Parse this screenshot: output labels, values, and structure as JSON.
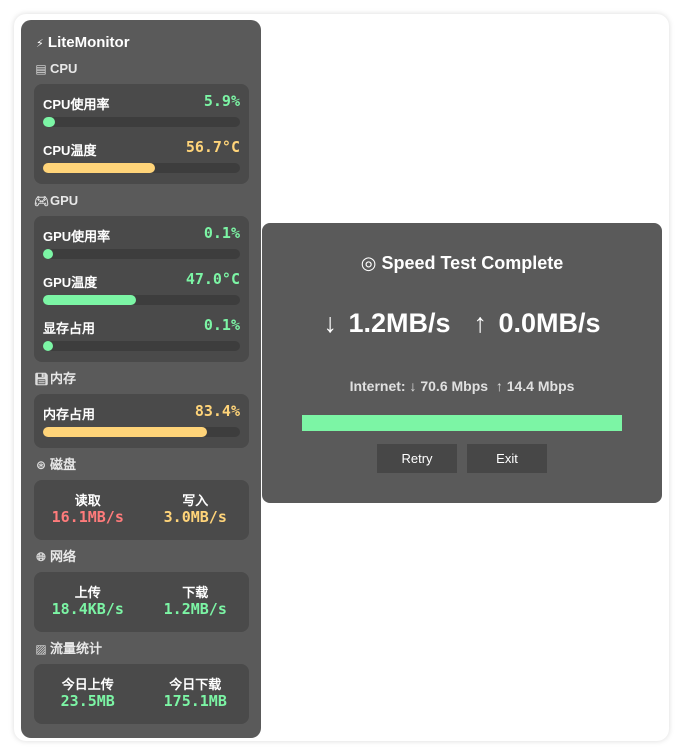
{
  "colors": {
    "green": "#7cf5a5",
    "yellow": "#ffd479",
    "red": "#ff7b7b"
  },
  "app": {
    "title": "LiteMonitor",
    "icon": "lightning-icon"
  },
  "cpu": {
    "header": "CPU",
    "icon": "computer-icon",
    "usage_label": "CPU使用率",
    "usage_value": "5.9%",
    "usage_percent": 5.9,
    "temp_label": "CPU温度",
    "temp_value": "56.7°C",
    "temp_percent": 56.7
  },
  "gpu": {
    "header": "GPU",
    "icon": "gamepad-icon",
    "usage_label": "GPU使用率",
    "usage_value": "0.1%",
    "usage_percent": 0.1,
    "temp_label": "GPU温度",
    "temp_value": "47.0°C",
    "temp_percent": 47,
    "vram_label": "显存占用",
    "vram_value": "0.1%",
    "vram_percent": 0.1
  },
  "memory": {
    "header": "内存",
    "icon": "floppy-icon",
    "usage_label": "内存占用",
    "usage_value": "83.4%",
    "usage_percent": 83.4
  },
  "disk": {
    "header": "磁盘",
    "icon": "disk-icon",
    "read_label": "读取",
    "read_value": "16.1MB/s",
    "write_label": "写入",
    "write_value": "3.0MB/s"
  },
  "network": {
    "header": "网络",
    "icon": "globe-icon",
    "up_label": "上传",
    "up_value": "18.4KB/s",
    "down_label": "下载",
    "down_value": "1.2MB/s"
  },
  "traffic": {
    "header": "流量统计",
    "icon": "chart-icon",
    "today_up_label": "今日上传",
    "today_up_value": "23.5MB",
    "today_down_label": "今日下载",
    "today_down_value": "175.1MB"
  },
  "dialog": {
    "icon": "target-icon",
    "title": "Speed Test Complete",
    "result": "↓ 1.2MB/s  ↑ 0.0MB/s",
    "internet": "Internet: ↓ 70.6 Mbps  ↑ 14.4 Mbps",
    "progress_percent": 100,
    "retry_label": "Retry",
    "exit_label": "Exit"
  }
}
